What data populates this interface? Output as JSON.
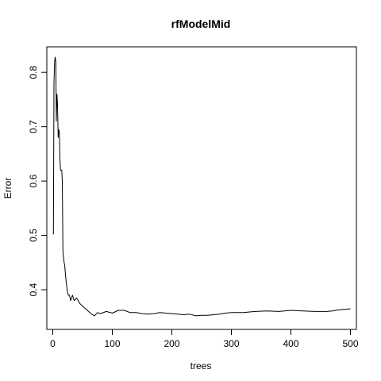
{
  "chart_data": {
    "type": "line",
    "title": "rfModelMid",
    "xlabel": "trees",
    "ylabel": "Error",
    "xlim": [
      -10,
      510
    ],
    "ylim": [
      0.327,
      0.847
    ],
    "xticks": [
      0,
      100,
      200,
      300,
      400,
      500
    ],
    "yticks": [
      0.4,
      0.5,
      0.6,
      0.7,
      0.8
    ],
    "xtick_labels": [
      "0",
      "100",
      "200",
      "300",
      "400",
      "500"
    ],
    "ytick_labels": [
      "0.4",
      "0.5",
      "0.6",
      "0.7",
      "0.8"
    ],
    "grid": false,
    "series": [
      {
        "x": [
          1,
          2,
          3,
          4,
          5,
          6,
          7,
          8,
          9,
          10,
          11,
          12,
          13,
          14,
          15,
          16,
          17,
          18,
          19,
          20,
          22,
          24,
          26,
          28,
          30,
          33,
          36,
          40,
          45,
          50,
          55,
          60,
          65,
          70,
          75,
          80,
          90,
          100,
          110,
          120,
          130,
          140,
          150,
          160,
          170,
          180,
          190,
          200,
          210,
          220,
          230,
          240,
          250,
          260,
          270,
          280,
          290,
          300,
          320,
          340,
          360,
          380,
          400,
          420,
          440,
          460,
          470,
          480,
          490,
          500
        ],
        "y": [
          0.502,
          0.78,
          0.82,
          0.828,
          0.82,
          0.71,
          0.76,
          0.74,
          0.68,
          0.695,
          0.69,
          0.64,
          0.62,
          0.62,
          0.62,
          0.6,
          0.47,
          0.46,
          0.45,
          0.445,
          0.42,
          0.4,
          0.39,
          0.39,
          0.38,
          0.39,
          0.38,
          0.385,
          0.375,
          0.37,
          0.365,
          0.36,
          0.355,
          0.352,
          0.358,
          0.356,
          0.36,
          0.357,
          0.362,
          0.362,
          0.358,
          0.358,
          0.356,
          0.355,
          0.356,
          0.358,
          0.357,
          0.356,
          0.355,
          0.354,
          0.355,
          0.352,
          0.353,
          0.353,
          0.354,
          0.355,
          0.357,
          0.358,
          0.358,
          0.36,
          0.361,
          0.36,
          0.362,
          0.361,
          0.36,
          0.36,
          0.361,
          0.363,
          0.364,
          0.365
        ]
      }
    ]
  }
}
